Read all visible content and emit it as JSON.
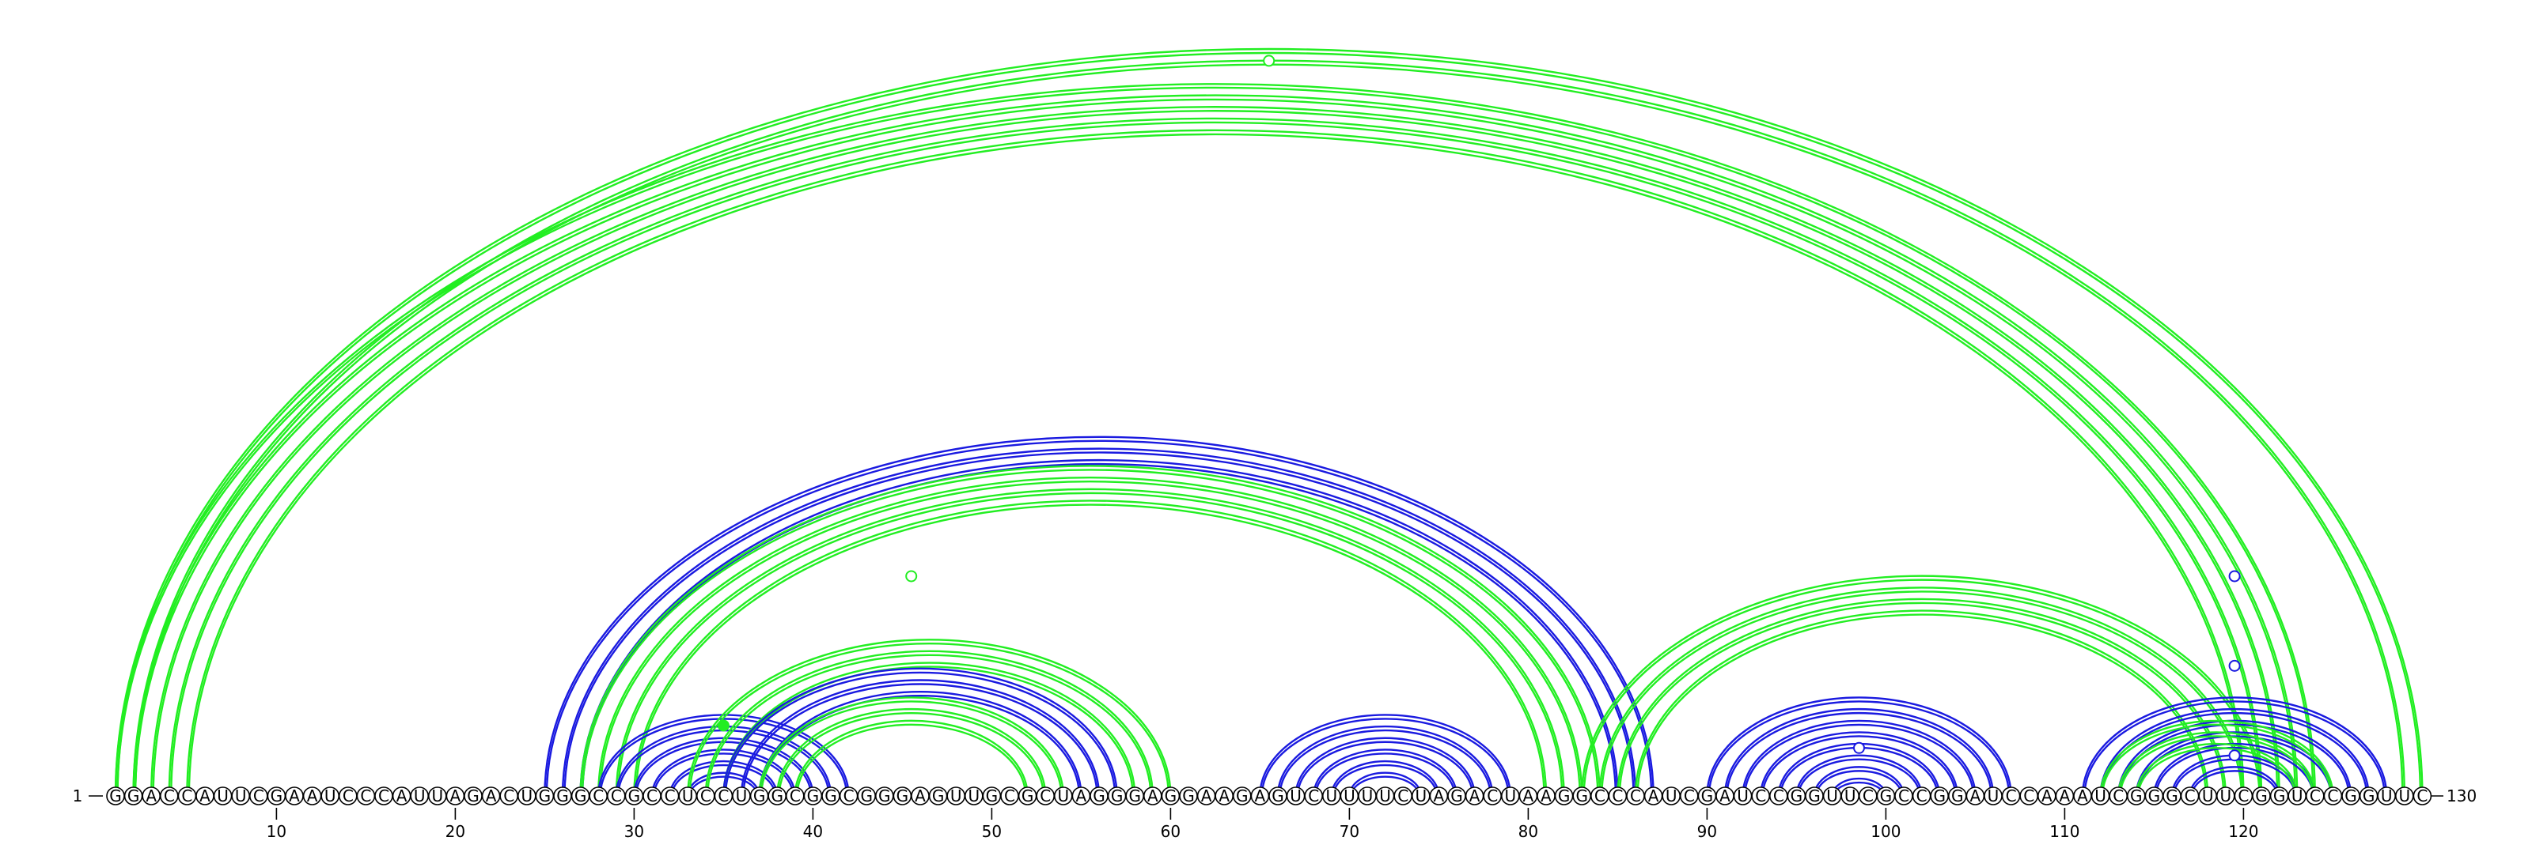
{
  "sequence": "GGACCAUUCGAAUCCCAUUAGACUGGGCCGCCUCCUGGCGGCGGGAGUUGCGCUAGGGAGGAAGAGUCUUUUCUAGACUAAGGCCCAUCGAUCCGGUUCGCCGGAUCCAAAUCGGGCUUCGGUCCGGUUC",
  "start_label": "1",
  "end_label": "130",
  "ticks": [
    10,
    20,
    30,
    40,
    50,
    60,
    70,
    80,
    90,
    100,
    110,
    120
  ],
  "colors": {
    "green": "#22ee22",
    "blue": "#1a1ae0",
    "outline": "#000000"
  },
  "arc_groups": [
    {
      "name": "outer-green-1",
      "color": "green",
      "arcs": [
        [
          1,
          124
        ],
        [
          2,
          123
        ],
        [
          3,
          122
        ],
        [
          4,
          121
        ],
        [
          5,
          120
        ]
      ]
    },
    {
      "name": "outer-green-2",
      "color": "green",
      "arcs": [
        [
          1,
          130
        ],
        [
          2,
          129
        ]
      ]
    },
    {
      "name": "blue-long",
      "color": "blue",
      "arcs": [
        [
          25,
          87
        ],
        [
          26,
          86
        ],
        [
          27,
          85
        ]
      ]
    },
    {
      "name": "green-long",
      "color": "green",
      "arcs": [
        [
          27,
          84
        ],
        [
          28,
          83
        ],
        [
          29,
          82
        ],
        [
          30,
          81
        ]
      ]
    },
    {
      "name": "blue-left-cluster",
      "color": "blue",
      "arcs": [
        [
          28,
          42
        ],
        [
          29,
          41
        ],
        [
          30,
          40
        ],
        [
          31,
          39
        ],
        [
          32,
          38
        ],
        [
          33,
          37
        ]
      ]
    },
    {
      "name": "green-mid-1",
      "color": "green",
      "arcs": [
        [
          33,
          60
        ],
        [
          34,
          59
        ],
        [
          35,
          58
        ]
      ]
    },
    {
      "name": "blue-mid",
      "color": "blue",
      "arcs": [
        [
          35,
          57
        ],
        [
          36,
          56
        ],
        [
          37,
          55
        ]
      ]
    },
    {
      "name": "green-mid-2",
      "color": "green",
      "arcs": [
        [
          37,
          54
        ],
        [
          38,
          53
        ],
        [
          39,
          52
        ]
      ]
    },
    {
      "name": "blue-center",
      "color": "blue",
      "arcs": [
        [
          65,
          79
        ],
        [
          66,
          78
        ],
        [
          67,
          77
        ],
        [
          68,
          76
        ],
        [
          69,
          75
        ],
        [
          70,
          74
        ]
      ]
    },
    {
      "name": "green-right-1",
      "color": "green",
      "arcs": [
        [
          83,
          121
        ],
        [
          84,
          120
        ],
        [
          85,
          119
        ],
        [
          86,
          118
        ]
      ]
    },
    {
      "name": "blue-right-1",
      "color": "blue",
      "arcs": [
        [
          90,
          107
        ],
        [
          91,
          106
        ],
        [
          92,
          105
        ],
        [
          93,
          104
        ],
        [
          94,
          103
        ],
        [
          95,
          102
        ],
        [
          96,
          101
        ],
        [
          97,
          100
        ]
      ]
    },
    {
      "name": "blue-right-2",
      "color": "blue",
      "arcs": [
        [
          111,
          128
        ],
        [
          112,
          127
        ],
        [
          113,
          126
        ],
        [
          114,
          125
        ],
        [
          115,
          124
        ],
        [
          116,
          123
        ],
        [
          117,
          122
        ]
      ]
    },
    {
      "name": "green-right-2",
      "color": "green",
      "arcs": [
        [
          112,
          125
        ],
        [
          113,
          124
        ],
        [
          114,
          123
        ]
      ]
    }
  ],
  "markers": [
    {
      "pos": 65.5,
      "height": 0.98,
      "color": "green",
      "filled": false
    },
    {
      "pos": 45.5,
      "height": 0.29,
      "color": "green",
      "filled": false
    },
    {
      "pos": 35.0,
      "height": 0.09,
      "color": "green",
      "filled": true
    },
    {
      "pos": 119.5,
      "height": 0.29,
      "color": "blue",
      "filled": false
    },
    {
      "pos": 119.5,
      "height": 0.17,
      "color": "blue",
      "filled": false
    },
    {
      "pos": 119.5,
      "height": 0.05,
      "color": "blue",
      "filled": false
    },
    {
      "pos": 98.5,
      "height": 0.06,
      "color": "blue",
      "filled": false
    }
  ]
}
